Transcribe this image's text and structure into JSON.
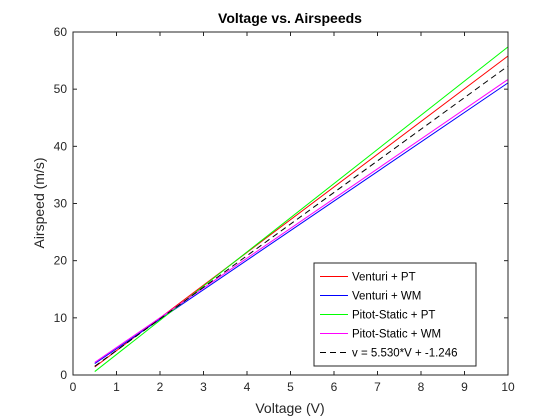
{
  "chart_data": {
    "type": "line",
    "title": "Voltage vs. Airspeeds",
    "xlabel": "Voltage (V)",
    "ylabel": "Airspeed (m/s)",
    "xlim": [
      0,
      10
    ],
    "ylim": [
      0,
      60
    ],
    "xticks": [
      "0",
      "1",
      "2",
      "3",
      "4",
      "5",
      "6",
      "7",
      "8",
      "9",
      "10"
    ],
    "yticks": [
      "0",
      "10",
      "20",
      "30",
      "40",
      "50",
      "60"
    ],
    "grid": false,
    "legend_position": "bottom-right",
    "series": [
      {
        "name": "Venturi + PT",
        "color": "#ff0000",
        "dash": "solid",
        "x": [
          0.5,
          10
        ],
        "y": [
          1.4,
          55.8
        ]
      },
      {
        "name": "Venturi + WM",
        "color": "#0000ff",
        "dash": "solid",
        "x": [
          0.5,
          10
        ],
        "y": [
          2.0,
          51.1
        ]
      },
      {
        "name": "Pitot-Static + PT",
        "color": "#00ff00",
        "dash": "solid",
        "x": [
          0.5,
          10
        ],
        "y": [
          0.6,
          57.4
        ]
      },
      {
        "name": "Pitot-Static + WM",
        "color": "#ff00ff",
        "dash": "solid",
        "x": [
          0.5,
          10
        ],
        "y": [
          2.2,
          51.7
        ]
      },
      {
        "name": "v = 5.530*V + -1.246",
        "color": "#000000",
        "dash": "dashed",
        "x": [
          0.5,
          10
        ],
        "y": [
          1.52,
          54.05
        ]
      }
    ]
  }
}
